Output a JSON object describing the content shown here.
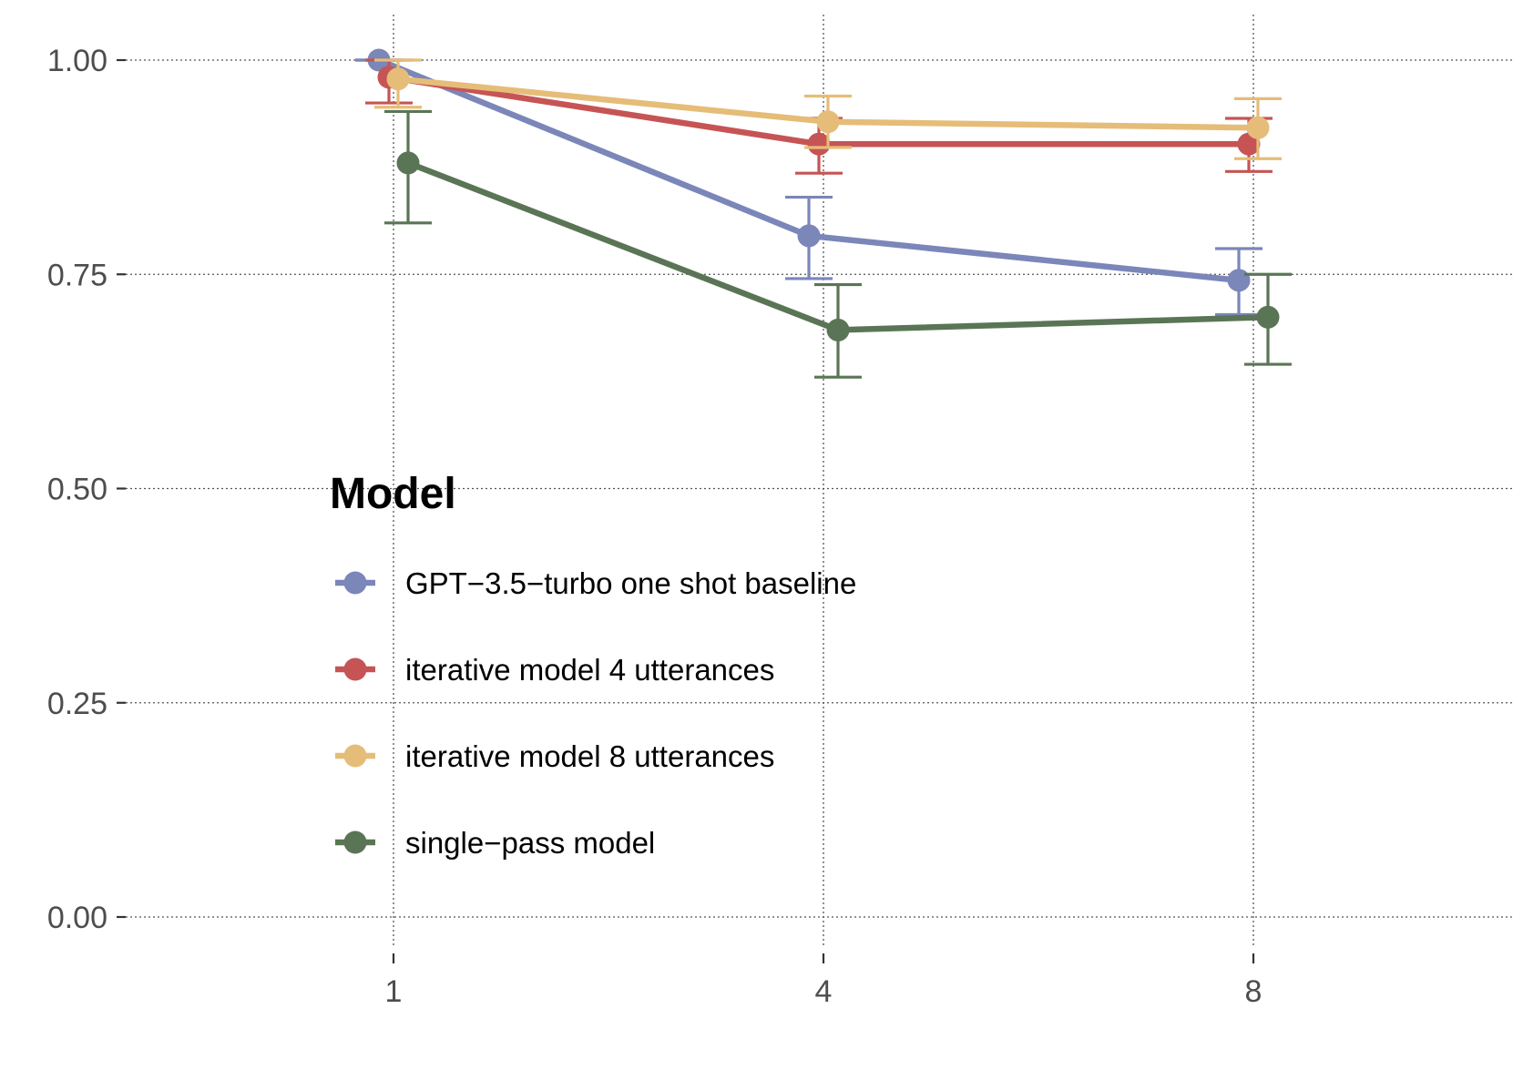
{
  "chart_data": {
    "type": "line",
    "title": "",
    "xlabel": "",
    "ylabel": "",
    "categories": [
      "1",
      "4",
      "8"
    ],
    "x": [
      1,
      4,
      8
    ],
    "ylim": [
      0,
      1
    ],
    "yticks": [
      "0.00",
      "0.25",
      "0.50",
      "0.75",
      "1.00"
    ],
    "ytick_values": [
      0,
      0.25,
      0.5,
      0.75,
      1.0
    ],
    "grid": true,
    "error_bars": true,
    "legend": {
      "title": "Model",
      "placement": "inside-center-left"
    },
    "series": [
      {
        "name": "GPT−3.5−turbo one shot baseline",
        "color": "#7b86b9",
        "values": [
          1.0,
          0.795,
          0.743
        ],
        "lower": [
          1.0,
          0.745,
          0.703
        ],
        "upper": [
          1.0,
          0.84,
          0.78
        ]
      },
      {
        "name": "iterative model 4 utterances",
        "color": "#c65455",
        "values": [
          0.98,
          0.902,
          0.902
        ],
        "lower": [
          0.95,
          0.868,
          0.87
        ],
        "upper": [
          1.0,
          0.932,
          0.932
        ]
      },
      {
        "name": "iterative model 8 utterances",
        "color": "#e5bd78",
        "values": [
          0.978,
          0.928,
          0.921
        ],
        "lower": [
          0.945,
          0.898,
          0.885
        ],
        "upper": [
          1.0,
          0.958,
          0.955
        ]
      },
      {
        "name": "single−pass model",
        "color": "#5a7555",
        "values": [
          0.88,
          0.685,
          0.7
        ],
        "lower": [
          0.81,
          0.63,
          0.645
        ],
        "upper": [
          0.94,
          0.738,
          0.75
        ]
      }
    ]
  }
}
